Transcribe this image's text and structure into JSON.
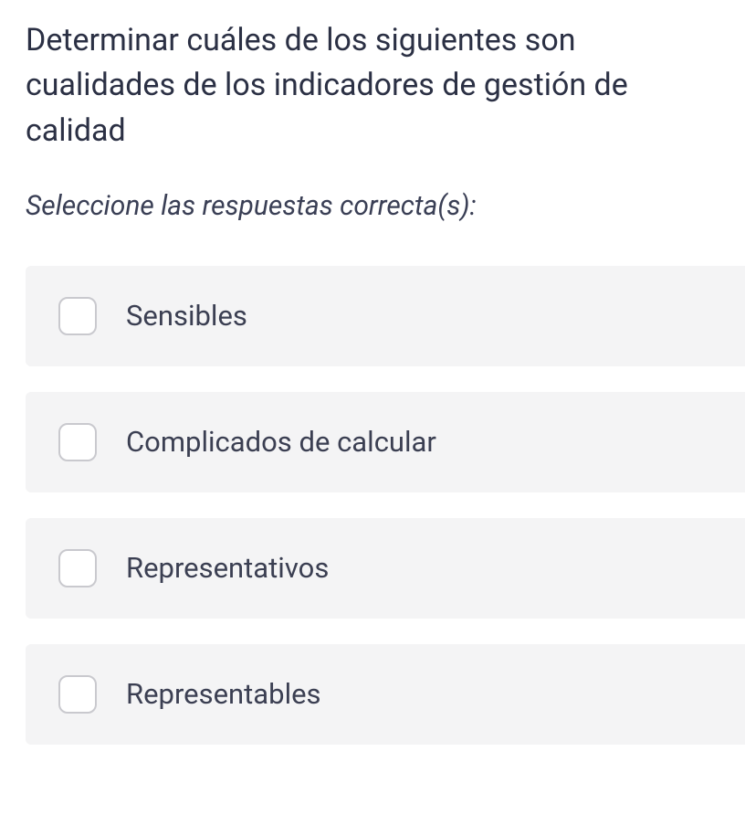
{
  "question": {
    "text": "Determinar cuáles de los siguientes son cualidades de los indicadores de gestión de calidad",
    "instruction": "Seleccione las respuestas correcta(s):",
    "options": [
      {
        "label": "Sensibles",
        "checked": false
      },
      {
        "label": "Complicados de calcular",
        "checked": false
      },
      {
        "label": "Representativos",
        "checked": false
      },
      {
        "label": "Representables",
        "checked": false
      }
    ]
  },
  "colors": {
    "text_primary": "#2b3044",
    "text_secondary": "#3a3f55",
    "option_bg": "#f4f4f5",
    "checkbox_border": "#c9c9ce",
    "background": "#ffffff"
  }
}
